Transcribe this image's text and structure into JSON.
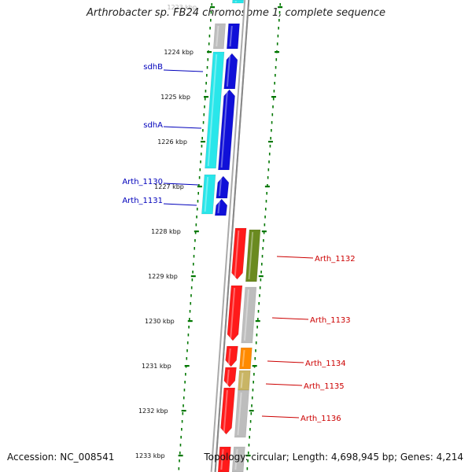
{
  "title": "Arthrobacter sp. FB24 chromosome 1, complete sequence",
  "footer": {
    "accession": "Accession: NC_008541",
    "summary": "Topology: circular; Length: 4,698,945 bp; Genes: 4,214"
  },
  "colors": {
    "backbone": "#888888",
    "left_label": "#0000bb",
    "right_label": "#cc0000",
    "tick": "#007700",
    "cyan": "#29e6ea",
    "blue": "#1010d8",
    "red": "#ff1a1a",
    "olive": "#6a8a20",
    "grey": "#bdbdbd",
    "orange": "#ff8a00",
    "khaki": "#c9b565"
  },
  "scale": {
    "unit": "kbp",
    "ticks": [
      {
        "label": "1223 kbp"
      },
      {
        "label": "1224 kbp"
      },
      {
        "label": "1225 kbp"
      },
      {
        "label": "1226 kbp"
      },
      {
        "label": "1227 kbp"
      },
      {
        "label": "1228 kbp"
      },
      {
        "label": "1229 kbp"
      },
      {
        "label": "1230 kbp"
      },
      {
        "label": "1231 kbp"
      },
      {
        "label": "1232 kbp"
      },
      {
        "label": "1233 kbp"
      }
    ]
  },
  "genes_left": [
    {
      "name": "sdhB"
    },
    {
      "name": "sdhA"
    },
    {
      "name": "Arth_1130"
    },
    {
      "name": "Arth_1131"
    }
  ],
  "genes_right": [
    {
      "name": "Arth_1132"
    },
    {
      "name": "Arth_1133"
    },
    {
      "name": "Arth_1134"
    },
    {
      "name": "Arth_1135"
    },
    {
      "name": "Arth_1136"
    }
  ]
}
